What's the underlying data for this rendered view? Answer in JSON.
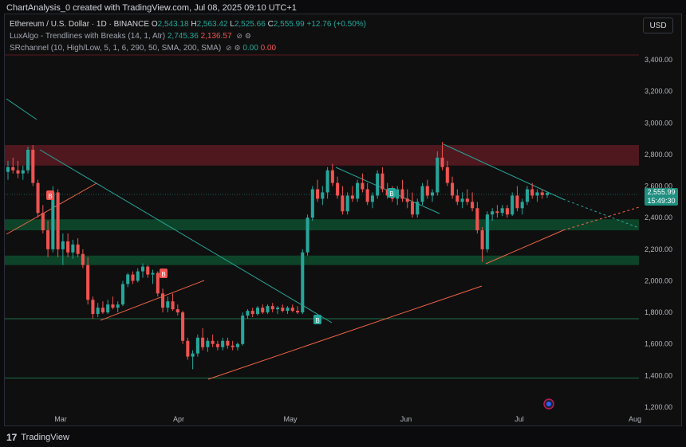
{
  "caption": "ChartAnalysis_0 created with TradingView.com, Jul 08, 2025 09:10 UTC+1",
  "legend": {
    "symbol": "Ethereum / U.S. Dollar · 1D · BINANCE",
    "o_label": "O",
    "o": "2,543.18",
    "h_label": "H",
    "h": "2,563.42",
    "l_label": "L",
    "l": "2,525.66",
    "c_label": "C",
    "c": "2,555.99",
    "change": "+12.76 (+0.50%)",
    "indicator1": "LuxAlgo - Trendlines with Breaks (14, 1, Atr)",
    "indicator1_v1": "2,745.36",
    "indicator1_v2": "2,136.57",
    "indicator2": "SRchannel (10, High/Low, 5, 1, 6, 290, 50, SMA, 200, SMA)",
    "indicator2_v1": "0.00",
    "indicator2_v2": "0.00"
  },
  "currency": "USD",
  "price_tag": {
    "price": "2,555.99",
    "countdown": "15:49:30"
  },
  "y_labels": [
    "3,400.00",
    "3,200.00",
    "3,000.00",
    "2,800.00",
    "2,600.00",
    "2,400.00",
    "2,200.00",
    "2,000.00",
    "1,800.00",
    "1,600.00",
    "1,400.00",
    "1,200.00"
  ],
  "x_labels": [
    "Mar",
    "Apr",
    "May",
    "Jun",
    "Jul",
    "Aug"
  ],
  "break_markers": [
    "B",
    "B",
    "B"
  ],
  "footer": "TradingView",
  "colors": {
    "up": "#26a69a",
    "down": "#ef5350",
    "resistance_zone": "#5a1a22",
    "support_zone": "#0d4a2c"
  },
  "chart_data": {
    "type": "candlestick",
    "ylim": [
      1200,
      3450
    ],
    "resistance_zone": [
      2730,
      2860
    ],
    "support_zones": [
      [
        2320,
        2390
      ],
      [
        2100,
        2160
      ]
    ],
    "support_lines": [
      1760,
      1385
    ],
    "candles": [
      [
        2690,
        2760,
        2640,
        2720
      ],
      [
        2720,
        2780,
        2680,
        2700
      ],
      [
        2700,
        2760,
        2650,
        2680
      ],
      [
        2680,
        2730,
        2640,
        2700
      ],
      [
        2700,
        2850,
        2680,
        2830
      ],
      [
        2830,
        2860,
        2600,
        2620
      ],
      [
        2620,
        2640,
        2400,
        2430
      ],
      [
        2430,
        2480,
        2300,
        2320
      ],
      [
        2320,
        2380,
        2150,
        2200
      ],
      [
        2200,
        2600,
        2180,
        2560
      ],
      [
        2560,
        2580,
        2150,
        2200
      ],
      [
        2200,
        2300,
        2100,
        2250
      ],
      [
        2250,
        2300,
        2150,
        2180
      ],
      [
        2180,
        2260,
        2140,
        2230
      ],
      [
        2230,
        2270,
        2150,
        2170
      ],
      [
        2170,
        2200,
        2080,
        2100
      ],
      [
        2100,
        2150,
        1850,
        1880
      ],
      [
        1880,
        1900,
        1760,
        1790
      ],
      [
        1790,
        1860,
        1770,
        1830
      ],
      [
        1830,
        1870,
        1790,
        1800
      ],
      [
        1800,
        1880,
        1790,
        1850
      ],
      [
        1850,
        1900,
        1820,
        1830
      ],
      [
        1830,
        1870,
        1800,
        1850
      ],
      [
        1850,
        2000,
        1840,
        1980
      ],
      [
        1980,
        2050,
        1960,
        2040
      ],
      [
        2040,
        2060,
        1980,
        2000
      ],
      [
        2000,
        2080,
        1990,
        2060
      ],
      [
        2060,
        2110,
        2020,
        2090
      ],
      [
        2090,
        2100,
        2020,
        2040
      ],
      [
        2040,
        2070,
        1980,
        2050
      ],
      [
        2050,
        2060,
        1900,
        1920
      ],
      [
        1920,
        1950,
        1800,
        1830
      ],
      [
        1830,
        1900,
        1800,
        1870
      ],
      [
        1870,
        1920,
        1810,
        1820
      ],
      [
        1820,
        1850,
        1780,
        1800
      ],
      [
        1800,
        1810,
        1600,
        1620
      ],
      [
        1620,
        1640,
        1500,
        1520
      ],
      [
        1520,
        1560,
        1440,
        1540
      ],
      [
        1540,
        1660,
        1520,
        1640
      ],
      [
        1640,
        1700,
        1560,
        1580
      ],
      [
        1580,
        1640,
        1550,
        1620
      ],
      [
        1620,
        1660,
        1580,
        1600
      ],
      [
        1600,
        1620,
        1560,
        1580
      ],
      [
        1580,
        1640,
        1560,
        1620
      ],
      [
        1620,
        1640,
        1570,
        1590
      ],
      [
        1590,
        1620,
        1560,
        1580
      ],
      [
        1580,
        1610,
        1560,
        1600
      ],
      [
        1600,
        1800,
        1590,
        1780
      ],
      [
        1780,
        1820,
        1760,
        1810
      ],
      [
        1810,
        1830,
        1770,
        1790
      ],
      [
        1790,
        1840,
        1780,
        1830
      ],
      [
        1830,
        1850,
        1790,
        1800
      ],
      [
        1800,
        1850,
        1790,
        1840
      ],
      [
        1840,
        1860,
        1800,
        1820
      ],
      [
        1820,
        1840,
        1790,
        1830
      ],
      [
        1830,
        1850,
        1800,
        1810
      ],
      [
        1810,
        1840,
        1790,
        1830
      ],
      [
        1830,
        1850,
        1800,
        1810
      ],
      [
        1810,
        1840,
        1790,
        1800
      ],
      [
        1800,
        2200,
        1790,
        2180
      ],
      [
        2180,
        2420,
        2160,
        2400
      ],
      [
        2400,
        2600,
        2380,
        2580
      ],
      [
        2580,
        2640,
        2500,
        2520
      ],
      [
        2520,
        2600,
        2480,
        2560
      ],
      [
        2560,
        2720,
        2520,
        2700
      ],
      [
        2700,
        2740,
        2600,
        2620
      ],
      [
        2620,
        2660,
        2520,
        2540
      ],
      [
        2540,
        2600,
        2420,
        2440
      ],
      [
        2440,
        2560,
        2420,
        2540
      ],
      [
        2540,
        2600,
        2500,
        2520
      ],
      [
        2520,
        2640,
        2500,
        2620
      ],
      [
        2620,
        2680,
        2560,
        2580
      ],
      [
        2580,
        2620,
        2480,
        2500
      ],
      [
        2500,
        2560,
        2460,
        2540
      ],
      [
        2540,
        2700,
        2520,
        2680
      ],
      [
        2680,
        2720,
        2560,
        2580
      ],
      [
        2580,
        2620,
        2520,
        2540
      ],
      [
        2540,
        2600,
        2500,
        2520
      ],
      [
        2520,
        2600,
        2480,
        2580
      ],
      [
        2580,
        2640,
        2500,
        2520
      ],
      [
        2520,
        2580,
        2460,
        2500
      ],
      [
        2500,
        2560,
        2400,
        2420
      ],
      [
        2420,
        2520,
        2400,
        2500
      ],
      [
        2500,
        2620,
        2480,
        2600
      ],
      [
        2600,
        2640,
        2520,
        2540
      ],
      [
        2540,
        2580,
        2500,
        2560
      ],
      [
        2560,
        2820,
        2540,
        2780
      ],
      [
        2780,
        2880,
        2700,
        2720
      ],
      [
        2720,
        2760,
        2600,
        2620
      ],
      [
        2620,
        2660,
        2520,
        2540
      ],
      [
        2540,
        2580,
        2480,
        2500
      ],
      [
        2500,
        2560,
        2460,
        2520
      ],
      [
        2520,
        2580,
        2480,
        2500
      ],
      [
        2500,
        2560,
        2440,
        2460
      ],
      [
        2460,
        2500,
        2300,
        2320
      ],
      [
        2320,
        2340,
        2120,
        2200
      ],
      [
        2200,
        2440,
        2180,
        2420
      ],
      [
        2420,
        2460,
        2380,
        2440
      ],
      [
        2440,
        2480,
        2400,
        2430
      ],
      [
        2430,
        2480,
        2410,
        2460
      ],
      [
        2460,
        2480,
        2400,
        2420
      ],
      [
        2420,
        2560,
        2410,
        2540
      ],
      [
        2540,
        2600,
        2440,
        2460
      ],
      [
        2460,
        2520,
        2420,
        2500
      ],
      [
        2500,
        2600,
        2480,
        2580
      ],
      [
        2580,
        2620,
        2520,
        2540
      ],
      [
        2540,
        2580,
        2500,
        2560
      ],
      [
        2560,
        2580,
        2520,
        2543
      ],
      [
        2543,
        2563,
        2526,
        2556
      ]
    ]
  }
}
